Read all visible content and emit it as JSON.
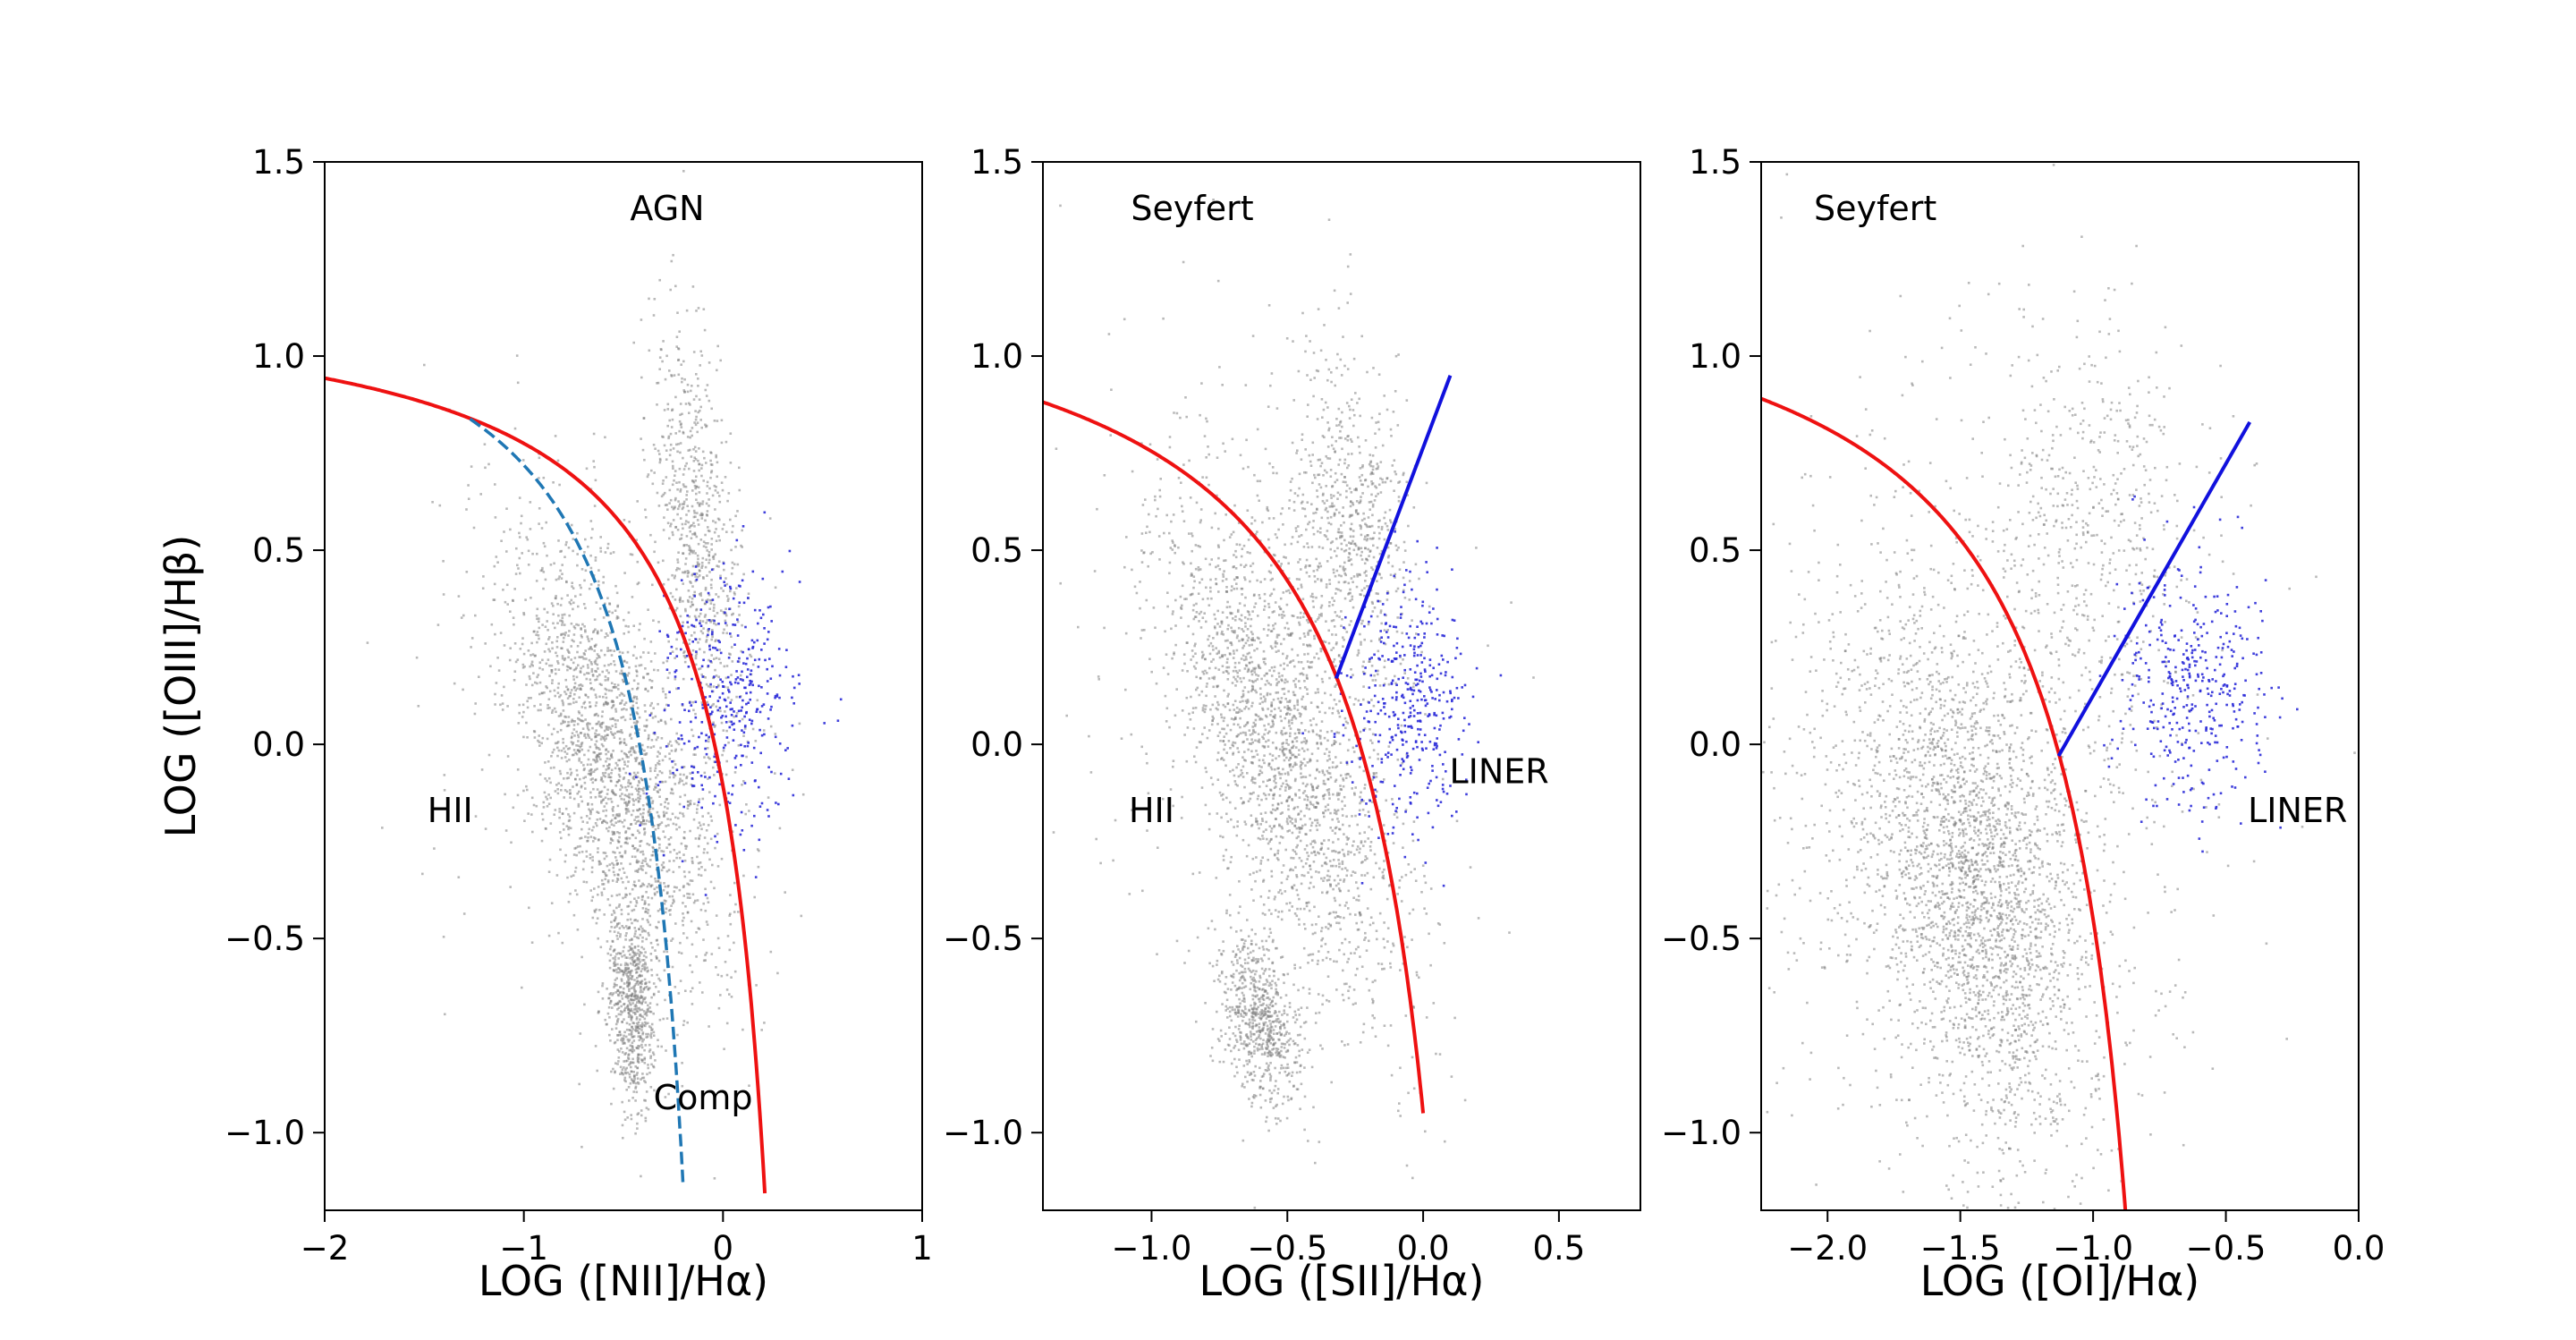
{
  "chart_data": [
    {
      "type": "scatter",
      "title": "",
      "xlabel": "LOG ([NII]/Hα)",
      "ylabel": "LOG ([OIII]/Hβ)",
      "xlim": [
        -2,
        1
      ],
      "ylim": [
        -1.2,
        1.5
      ],
      "xticks": [
        -2,
        -1,
        0,
        1
      ],
      "xtick_labels": [
        "−2",
        "−1",
        "0",
        "1"
      ],
      "yticks": [
        -1.0,
        -0.5,
        0.0,
        0.5,
        1.0,
        1.5
      ],
      "ytick_labels": [
        "−1.0",
        "−0.5",
        "0.0",
        "0.5",
        "1.0",
        "1.5"
      ],
      "grid": false,
      "region_labels": [
        {
          "text": "AGN",
          "x": -0.28,
          "y": 1.38
        },
        {
          "text": "HII",
          "x": -1.37,
          "y": -0.17
        },
        {
          "text": "Comp",
          "x": -0.1,
          "y": -0.91
        }
      ],
      "series": [
        {
          "kind": "points",
          "color": "#808080",
          "clusters": [
            {
              "cx": -0.55,
              "cy": -0.05,
              "sx": 0.17,
              "sy": 0.33,
              "rot": 0.75,
              "n": 1900
            },
            {
              "cx": -0.45,
              "cy": -0.68,
              "sx": 0.06,
              "sy": 0.13,
              "rot": 0.1,
              "n": 700
            },
            {
              "cx": -0.12,
              "cy": 0.52,
              "sx": 0.1,
              "sy": 0.28,
              "rot": 0.2,
              "n": 700
            },
            {
              "cx": -0.6,
              "cy": 0.1,
              "sx": 0.4,
              "sy": 0.45,
              "rot": 0.5,
              "n": 280
            }
          ]
        },
        {
          "kind": "points",
          "color": "#2b2bd8",
          "clusters": [
            {
              "cx": 0.02,
              "cy": 0.12,
              "sx": 0.17,
              "sy": 0.17,
              "rot": 0.0,
              "n": 380
            }
          ]
        },
        {
          "kind": "curve",
          "color": "#ee1111",
          "style": "solid",
          "a": 0.61,
          "b": 0.47,
          "c": 1.19,
          "x_from": -2.0,
          "x_to": 0.21
        },
        {
          "kind": "curve",
          "color": "#1f77b4",
          "style": "dashed",
          "a": 0.61,
          "b": 0.05,
          "c": 1.3,
          "x_from": -1.27,
          "x_to": -0.2
        }
      ]
    },
    {
      "type": "scatter",
      "title": "",
      "xlabel": "LOG ([SII]/Hα)",
      "ylabel": "",
      "xlim": [
        -1.4,
        0.8
      ],
      "ylim": [
        -1.2,
        1.5
      ],
      "xticks": [
        -1.0,
        -0.5,
        0.0,
        0.5
      ],
      "xtick_labels": [
        "−1.0",
        "−0.5",
        "0.0",
        "0.5"
      ],
      "yticks": [
        -1.0,
        -0.5,
        0.0,
        0.5,
        1.0,
        1.5
      ],
      "ytick_labels": [
        "−1.0",
        "−0.5",
        "0.0",
        "0.5",
        "1.0",
        "1.5"
      ],
      "grid": false,
      "region_labels": [
        {
          "text": "Seyfert",
          "x": -0.85,
          "y": 1.38
        },
        {
          "text": "HII",
          "x": -1.0,
          "y": -0.17
        },
        {
          "text": "LINER",
          "x": 0.28,
          "y": -0.07
        }
      ],
      "series": [
        {
          "kind": "points",
          "color": "#808080",
          "clusters": [
            {
              "cx": -0.52,
              "cy": 0.0,
              "sx": 0.15,
              "sy": 0.36,
              "rot": 0.5,
              "n": 1900
            },
            {
              "cx": -0.6,
              "cy": -0.72,
              "sx": 0.07,
              "sy": 0.12,
              "rot": 0.4,
              "n": 700
            },
            {
              "cx": -0.28,
              "cy": 0.55,
              "sx": 0.11,
              "sy": 0.23,
              "rot": 0.1,
              "n": 700
            },
            {
              "cx": -0.6,
              "cy": 0.15,
              "sx": 0.35,
              "sy": 0.45,
              "rot": 0.4,
              "n": 280
            }
          ]
        },
        {
          "kind": "points",
          "color": "#2b2bd8",
          "clusters": [
            {
              "cx": -0.05,
              "cy": 0.1,
              "sx": 0.12,
              "sy": 0.17,
              "rot": 0.0,
              "n": 380
            }
          ]
        },
        {
          "kind": "curve",
          "color": "#ee1111",
          "style": "solid",
          "a": 0.72,
          "b": 0.32,
          "c": 1.3,
          "x_from": -1.4,
          "x_to": 0.0
        },
        {
          "kind": "line",
          "color": "#1111dd",
          "x": [
            -0.32,
            0.1
          ],
          "y": [
            0.17,
            0.95
          ]
        }
      ]
    },
    {
      "type": "scatter",
      "title": "",
      "xlabel": "LOG ([OI]/Hα)",
      "ylabel": "",
      "xlim": [
        -2.25,
        0.0
      ],
      "ylim": [
        -1.2,
        1.5
      ],
      "xticks": [
        -2.0,
        -1.5,
        -1.0,
        -0.5,
        0.0
      ],
      "xtick_labels": [
        "−2.0",
        "−1.5",
        "−1.0",
        "−0.5",
        "0.0"
      ],
      "yticks": [
        -1.0,
        -0.5,
        0.0,
        0.5,
        1.0,
        1.5
      ],
      "ytick_labels": [
        "−1.0",
        "−0.5",
        "0.0",
        "0.5",
        "1.0",
        "1.5"
      ],
      "grid": false,
      "region_labels": [
        {
          "text": "Seyfert",
          "x": -1.82,
          "y": 1.38
        },
        {
          "text": "LINER",
          "x": -0.23,
          "y": -0.17
        }
      ],
      "series": [
        {
          "kind": "points",
          "color": "#808080",
          "clusters": [
            {
              "cx": -1.45,
              "cy": -0.35,
              "sx": 0.18,
              "sy": 0.36,
              "rot": 0.35,
              "n": 2200
            },
            {
              "cx": -1.5,
              "cy": -0.2,
              "sx": 0.4,
              "sy": 0.45,
              "rot": 0.5,
              "n": 900
            },
            {
              "cx": -1.0,
              "cy": 0.55,
              "sx": 0.22,
              "sy": 0.27,
              "rot": 0.1,
              "n": 500
            },
            {
              "cx": -1.5,
              "cy": 0.0,
              "sx": 0.6,
              "sy": 0.6,
              "rot": 0.3,
              "n": 300
            }
          ]
        },
        {
          "kind": "points",
          "color": "#2b2bd8",
          "clusters": [
            {
              "cx": -0.62,
              "cy": 0.15,
              "sx": 0.15,
              "sy": 0.17,
              "rot": 0.0,
              "n": 380
            }
          ]
        },
        {
          "kind": "curve",
          "color": "#ee1111",
          "style": "solid",
          "a": 0.73,
          "b": -0.59,
          "c": 1.33,
          "x_from": -2.25,
          "x_to": -0.87
        },
        {
          "kind": "line",
          "color": "#1111dd",
          "x": [
            -1.13,
            -0.41
          ],
          "y": [
            -0.03,
            0.83
          ]
        }
      ]
    }
  ]
}
